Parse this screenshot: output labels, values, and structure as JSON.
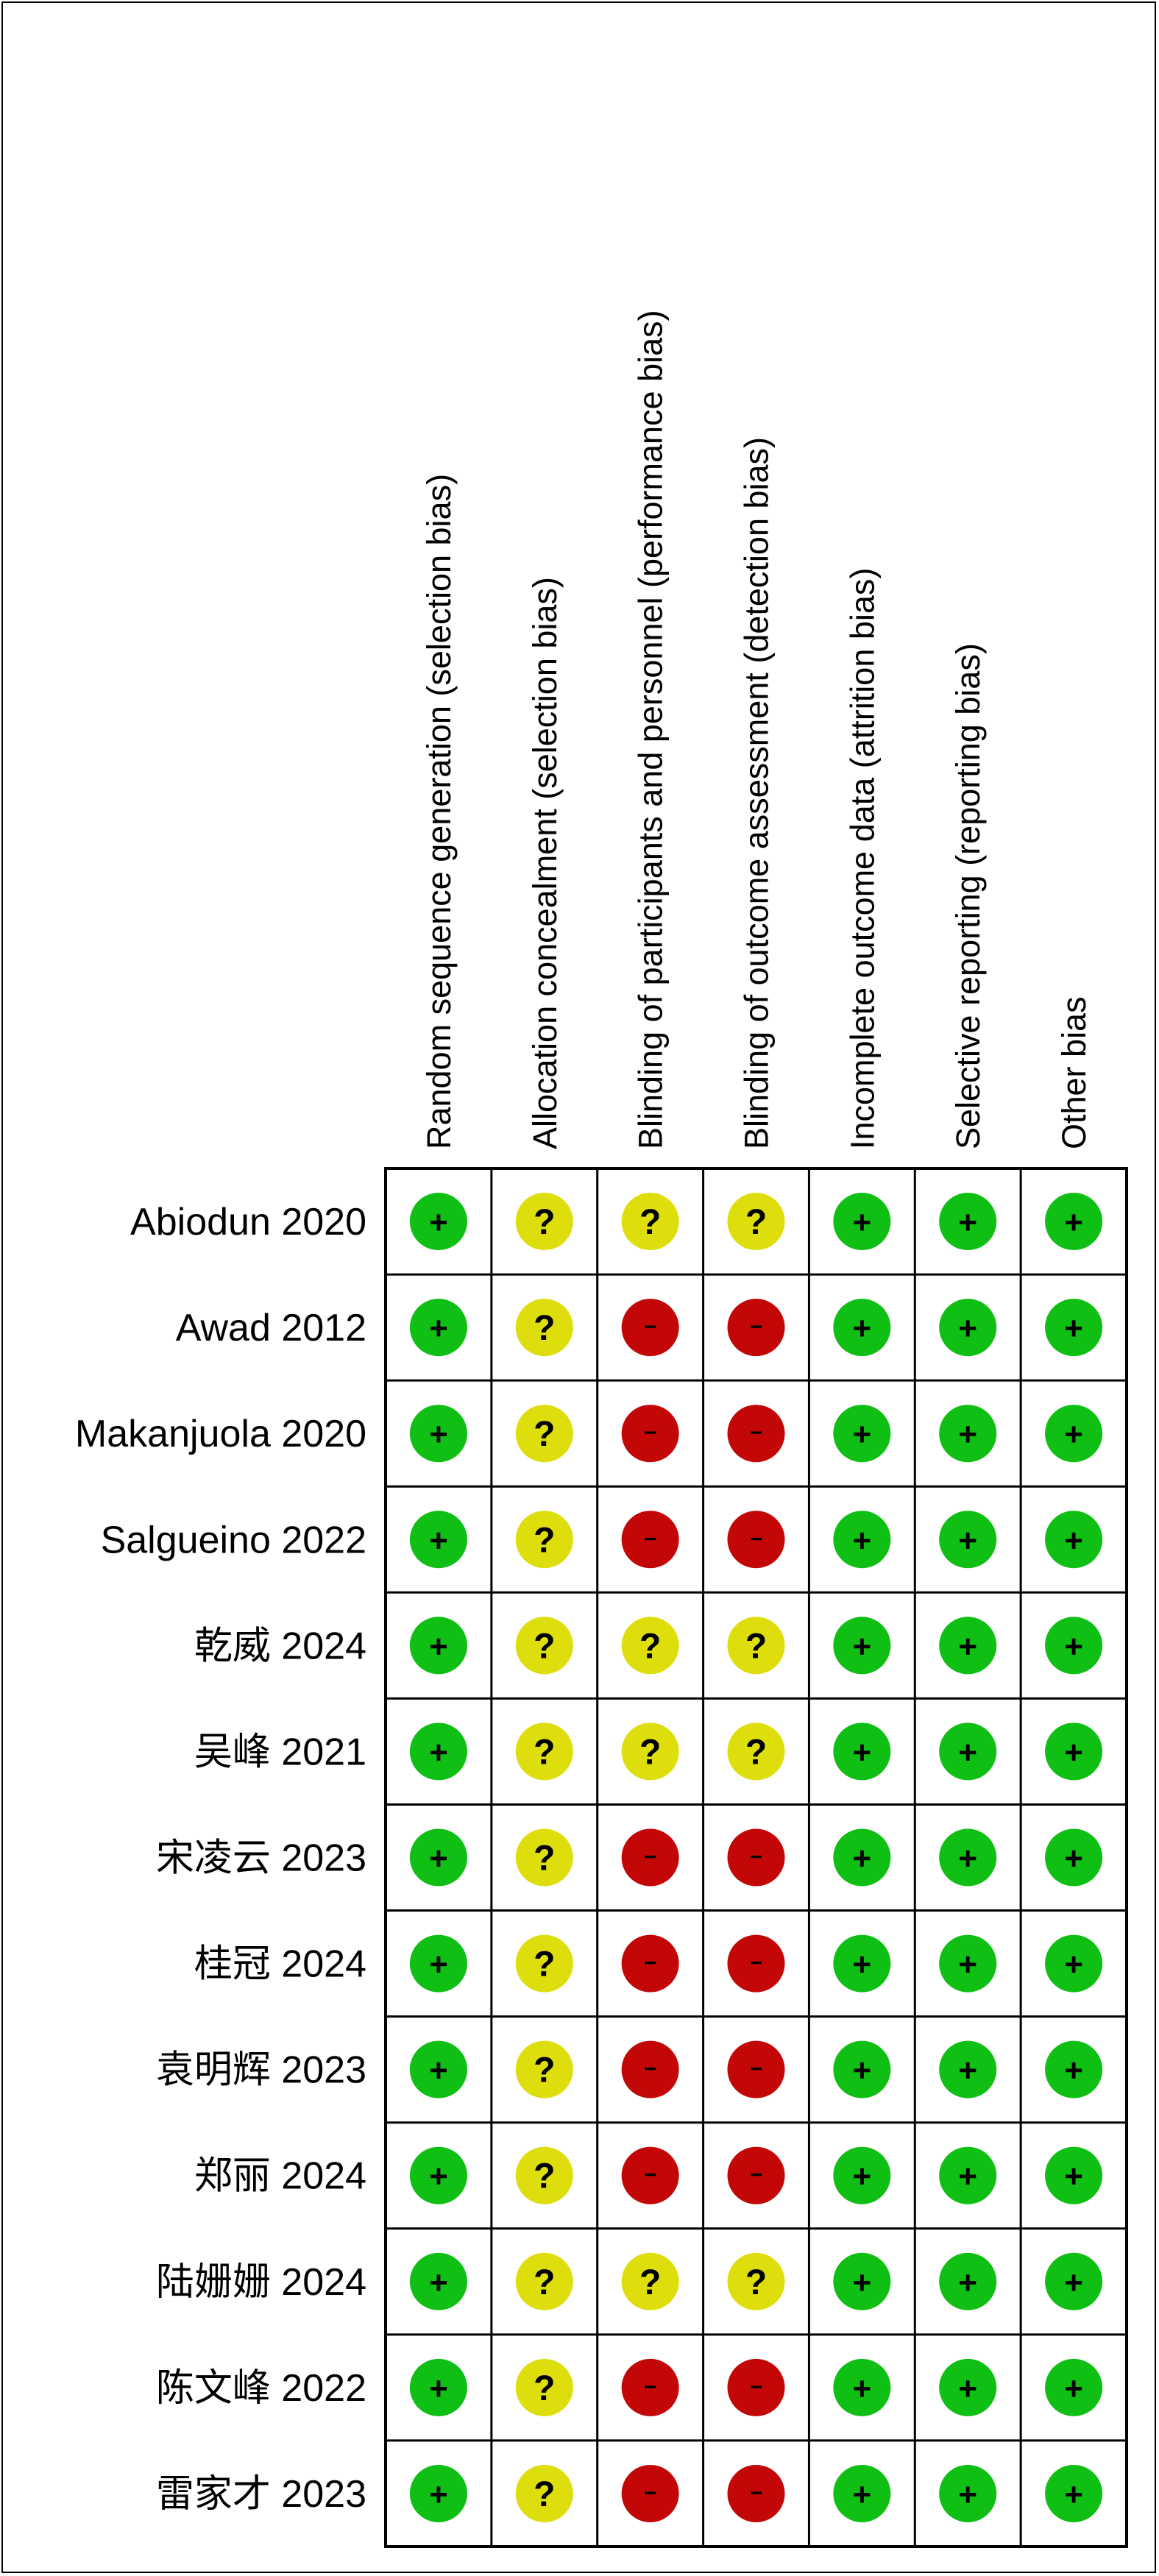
{
  "chart_data": {
    "type": "table",
    "domains": [
      "Random sequence generation (selection bias)",
      "Allocation concealment (selection bias)",
      "Blinding of participants and personnel (performance bias)",
      "Blinding of outcome assessment (detection bias)",
      "Incomplete outcome data (attrition bias)",
      "Selective reporting (reporting bias)",
      "Other bias"
    ],
    "studies": [
      "Abiodun 2020",
      "Awad 2012",
      "Makanjuola 2020",
      "Salgueino 2022",
      "乾威 2024",
      "吴峰 2021",
      "宋凌云 2023",
      "桂冠 2024",
      "袁明辉 2023",
      "郑丽 2024",
      "陆姗姗 2024",
      "陈文峰 2022",
      "雷家才 2023"
    ],
    "judgements": [
      [
        "low",
        "unclear",
        "unclear",
        "unclear",
        "low",
        "low",
        "low"
      ],
      [
        "low",
        "unclear",
        "high",
        "high",
        "low",
        "low",
        "low"
      ],
      [
        "low",
        "unclear",
        "high",
        "high",
        "low",
        "low",
        "low"
      ],
      [
        "low",
        "unclear",
        "high",
        "high",
        "low",
        "low",
        "low"
      ],
      [
        "low",
        "unclear",
        "unclear",
        "unclear",
        "low",
        "low",
        "low"
      ],
      [
        "low",
        "unclear",
        "unclear",
        "unclear",
        "low",
        "low",
        "low"
      ],
      [
        "low",
        "unclear",
        "high",
        "high",
        "low",
        "low",
        "low"
      ],
      [
        "low",
        "unclear",
        "high",
        "high",
        "low",
        "low",
        "low"
      ],
      [
        "low",
        "unclear",
        "high",
        "high",
        "low",
        "low",
        "low"
      ],
      [
        "low",
        "unclear",
        "high",
        "high",
        "low",
        "low",
        "low"
      ],
      [
        "low",
        "unclear",
        "unclear",
        "unclear",
        "low",
        "low",
        "low"
      ],
      [
        "low",
        "unclear",
        "high",
        "high",
        "low",
        "low",
        "low"
      ],
      [
        "low",
        "unclear",
        "high",
        "high",
        "low",
        "low",
        "low"
      ]
    ],
    "symbols": {
      "low": "+",
      "unclear": "?",
      "high": "−"
    },
    "colors": {
      "low": "#0FBF14",
      "unclear": "#DEDE0C",
      "high": "#C30707",
      "grid": "#000000",
      "text": "#000000"
    }
  }
}
